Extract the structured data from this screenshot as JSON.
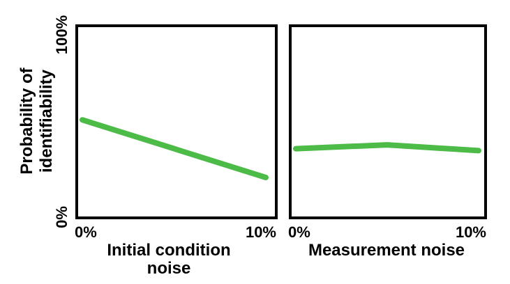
{
  "chart_data": [
    {
      "type": "line",
      "xlabel": [
        "Initial  condition",
        "noise"
      ],
      "ylabel": [
        "Probability  of",
        "identifiability"
      ],
      "x_ticks": [
        "0%",
        "10%"
      ],
      "y_ticks": [
        "0%",
        "100%"
      ],
      "xlim": [
        0,
        10
      ],
      "ylim": [
        0,
        100
      ],
      "series": [
        {
          "color": "#4cbb47",
          "x": [
            0,
            5,
            10
          ],
          "y": [
            51,
            36,
            21
          ]
        }
      ]
    },
    {
      "type": "line",
      "xlabel": [
        "Measurement  noise"
      ],
      "x_ticks": [
        "0%",
        "10%"
      ],
      "xlim": [
        0,
        10
      ],
      "ylim": [
        0,
        100
      ],
      "series": [
        {
          "color": "#4cbb47",
          "x": [
            0,
            5,
            10
          ],
          "y": [
            36,
            38,
            35
          ]
        }
      ]
    }
  ]
}
